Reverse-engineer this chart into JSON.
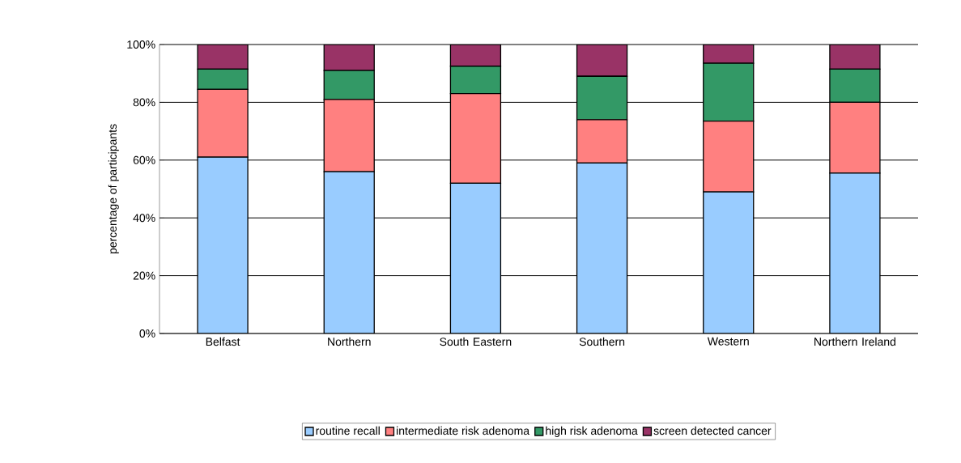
{
  "chart_data": {
    "type": "bar",
    "stacked": true,
    "ylabel": "percentage of participants",
    "categories": [
      "Belfast",
      "Northern",
      "South Eastern",
      "Southern",
      "Western",
      "Northern Ireland"
    ],
    "series": [
      {
        "name": "routine recall",
        "color": "#99ccff",
        "values": [
          61,
          56,
          52,
          59,
          49,
          55.5
        ]
      },
      {
        "name": "intermediate risk adenoma",
        "color": "#ff8080",
        "values": [
          23.5,
          25,
          31,
          15,
          24.5,
          24.5
        ]
      },
      {
        "name": "high risk adenoma",
        "color": "#339966",
        "values": [
          7,
          10,
          9.5,
          15,
          20,
          11.5
        ]
      },
      {
        "name": "screen detected cancer",
        "color": "#993366",
        "values": [
          8.5,
          9,
          7.5,
          11,
          6.5,
          8.5
        ]
      }
    ],
    "ylim": [
      0,
      100
    ],
    "yticks": [
      {
        "value": 0,
        "label": "0%"
      },
      {
        "value": 20,
        "label": "20%"
      },
      {
        "value": 40,
        "label": "40%"
      },
      {
        "value": 60,
        "label": "60%"
      },
      {
        "value": 80,
        "label": "80%"
      },
      {
        "value": 100,
        "label": "100%"
      }
    ],
    "grid": "y",
    "legend": "bottom"
  }
}
